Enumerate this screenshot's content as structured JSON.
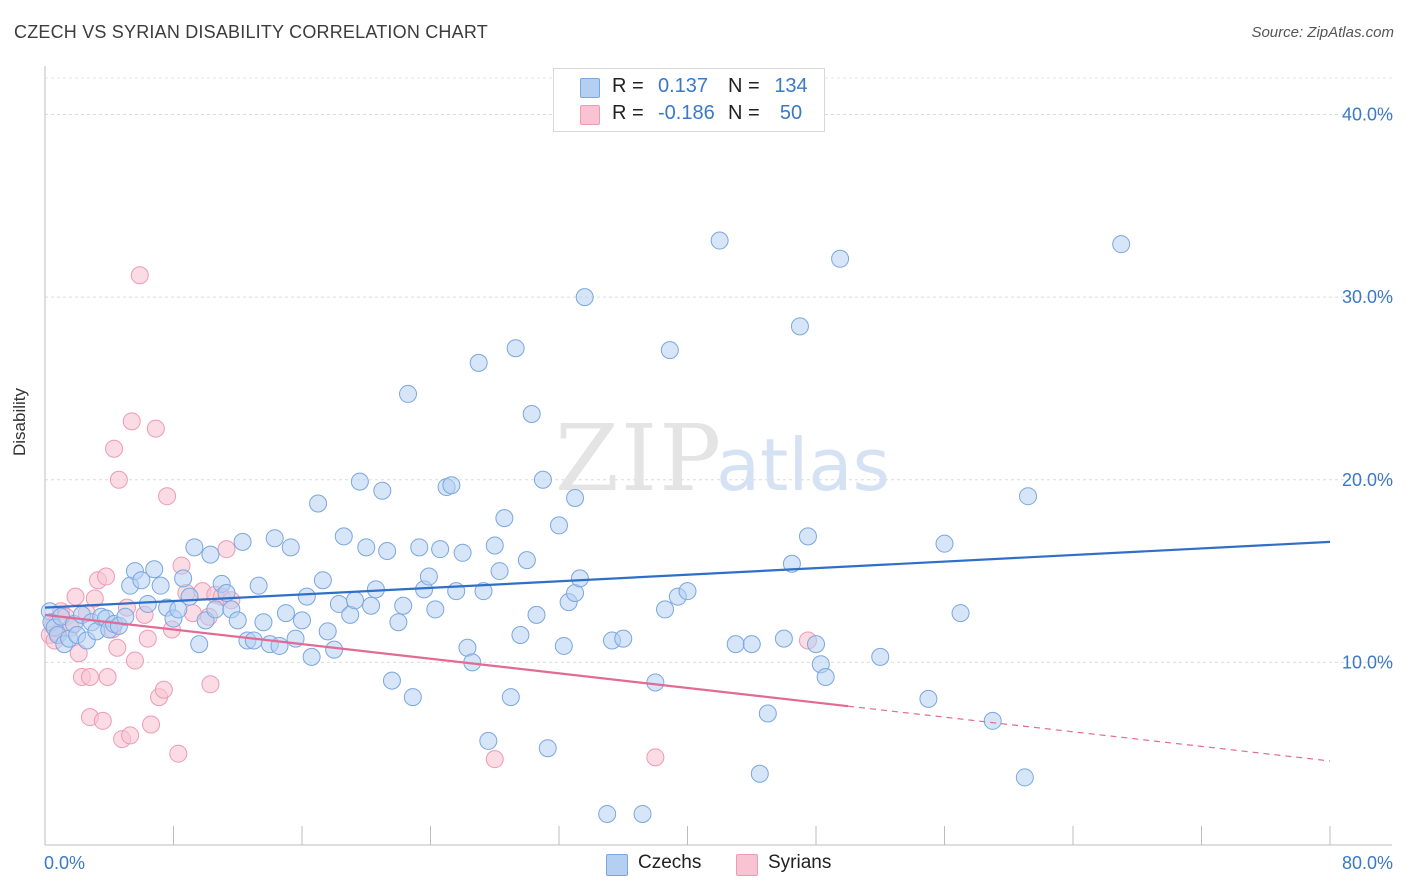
{
  "title": "CZECH VS SYRIAN DISABILITY CORRELATION CHART",
  "source": "Source: ZipAtlas.com",
  "watermark": {
    "zip": "ZIP",
    "atlas": "atlas"
  },
  "legend": {
    "r_label": "R =",
    "n_label": "N =",
    "czechs": {
      "r": "0.137",
      "n": "134"
    },
    "syrians": {
      "r": "-0.186",
      "n": "50"
    }
  },
  "colors": {
    "czech_fill": "#b5cff3",
    "czech_stroke": "#7aa7e0",
    "czech_line": "#2f6fc8",
    "syrian_fill": "#f8c4d4",
    "syrian_stroke": "#ee9ab5",
    "syrian_line": "#e26a95",
    "axis_text": "#3a78c8"
  },
  "chart_data": {
    "type": "scatter",
    "title": "CZECH VS SYRIAN DISABILITY CORRELATION CHART",
    "xlabel": "",
    "ylabel": "Disability",
    "xlim": [
      0,
      80
    ],
    "ylim": [
      0,
      42
    ],
    "x_tick_labels": [
      "0.0%",
      "80.0%"
    ],
    "y_ticks": [
      10,
      20,
      30,
      40
    ],
    "y_tick_labels": [
      "10.0%",
      "20.0%",
      "30.0%",
      "40.0%"
    ],
    "grid": true,
    "legend_position": "top-center",
    "series": [
      {
        "name": "Czechs",
        "r": 0.137,
        "n": 134,
        "trend": {
          "x": [
            0,
            80
          ],
          "y": [
            13.0,
            16.6
          ]
        },
        "points": [
          [
            0.3,
            12.8
          ],
          [
            0.4,
            12.2
          ],
          [
            0.6,
            11.9
          ],
          [
            0.8,
            11.5
          ],
          [
            1.0,
            12.5
          ],
          [
            1.2,
            11.0
          ],
          [
            1.5,
            11.3
          ],
          [
            1.8,
            12.1
          ],
          [
            2.0,
            11.5
          ],
          [
            2.3,
            12.6
          ],
          [
            2.6,
            11.2
          ],
          [
            2.9,
            12.2
          ],
          [
            3.2,
            11.7
          ],
          [
            3.5,
            12.5
          ],
          [
            3.8,
            12.4
          ],
          [
            4.0,
            11.8
          ],
          [
            4.3,
            12.1
          ],
          [
            4.6,
            12.0
          ],
          [
            5.0,
            12.5
          ],
          [
            5.3,
            14.2
          ],
          [
            5.6,
            15.0
          ],
          [
            6.0,
            14.5
          ],
          [
            6.4,
            13.2
          ],
          [
            6.8,
            15.1
          ],
          [
            7.2,
            14.2
          ],
          [
            7.6,
            13.0
          ],
          [
            8.0,
            12.4
          ],
          [
            8.3,
            12.9
          ],
          [
            8.6,
            14.6
          ],
          [
            9.0,
            13.6
          ],
          [
            9.3,
            16.3
          ],
          [
            9.6,
            11.0
          ],
          [
            10.0,
            12.3
          ],
          [
            10.3,
            15.9
          ],
          [
            10.6,
            12.9
          ],
          [
            11.0,
            14.3
          ],
          [
            11.3,
            13.8
          ],
          [
            11.6,
            12.9
          ],
          [
            12.0,
            12.3
          ],
          [
            12.3,
            16.6
          ],
          [
            12.6,
            11.2
          ],
          [
            13.0,
            11.2
          ],
          [
            13.3,
            14.2
          ],
          [
            13.6,
            12.2
          ],
          [
            14.0,
            11.0
          ],
          [
            14.3,
            16.8
          ],
          [
            14.6,
            10.9
          ],
          [
            15.0,
            12.7
          ],
          [
            15.3,
            16.3
          ],
          [
            15.6,
            11.3
          ],
          [
            16.0,
            12.3
          ],
          [
            16.3,
            13.6
          ],
          [
            16.6,
            10.3
          ],
          [
            17.0,
            18.7
          ],
          [
            17.3,
            14.5
          ],
          [
            17.6,
            11.7
          ],
          [
            18.0,
            10.7
          ],
          [
            18.3,
            13.2
          ],
          [
            18.6,
            16.9
          ],
          [
            19.0,
            12.6
          ],
          [
            19.3,
            13.4
          ],
          [
            19.6,
            19.9
          ],
          [
            20.0,
            16.3
          ],
          [
            20.3,
            13.1
          ],
          [
            20.6,
            14.0
          ],
          [
            21.0,
            19.4
          ],
          [
            21.3,
            16.1
          ],
          [
            21.6,
            9.0
          ],
          [
            22.0,
            12.2
          ],
          [
            22.3,
            13.1
          ],
          [
            22.6,
            24.7
          ],
          [
            22.9,
            8.1
          ],
          [
            23.3,
            16.3
          ],
          [
            23.6,
            14.0
          ],
          [
            23.9,
            14.7
          ],
          [
            24.3,
            12.9
          ],
          [
            24.6,
            16.2
          ],
          [
            25.0,
            19.6
          ],
          [
            25.3,
            19.7
          ],
          [
            25.6,
            13.9
          ],
          [
            26.0,
            16.0
          ],
          [
            26.3,
            10.8
          ],
          [
            26.6,
            10.0
          ],
          [
            27.0,
            26.4
          ],
          [
            27.3,
            13.9
          ],
          [
            27.6,
            5.7
          ],
          [
            28.0,
            16.4
          ],
          [
            28.3,
            15.0
          ],
          [
            28.6,
            17.9
          ],
          [
            29.0,
            8.1
          ],
          [
            29.3,
            27.2
          ],
          [
            29.6,
            11.5
          ],
          [
            30.0,
            15.6
          ],
          [
            30.3,
            23.6
          ],
          [
            30.6,
            12.6
          ],
          [
            31.0,
            20.0
          ],
          [
            31.3,
            5.3
          ],
          [
            32.0,
            17.5
          ],
          [
            32.3,
            10.9
          ],
          [
            32.6,
            13.3
          ],
          [
            33.0,
            13.8
          ],
          [
            33.3,
            14.6
          ],
          [
            33.6,
            30.0
          ],
          [
            35.0,
            1.7
          ],
          [
            35.3,
            11.2
          ],
          [
            36.0,
            11.3
          ],
          [
            37.2,
            1.7
          ],
          [
            38.0,
            8.9
          ],
          [
            38.6,
            12.9
          ],
          [
            38.9,
            27.1
          ],
          [
            39.4,
            13.6
          ],
          [
            40.0,
            13.9
          ],
          [
            42.0,
            33.1
          ],
          [
            43.0,
            11.0
          ],
          [
            44.0,
            11.0
          ],
          [
            44.5,
            3.9
          ],
          [
            45.0,
            7.2
          ],
          [
            46.0,
            11.3
          ],
          [
            46.5,
            15.4
          ],
          [
            47.0,
            28.4
          ],
          [
            47.5,
            16.9
          ],
          [
            48.0,
            11.0
          ],
          [
            48.3,
            9.9
          ],
          [
            48.6,
            9.2
          ],
          [
            49.5,
            32.1
          ],
          [
            52.0,
            10.3
          ],
          [
            55.0,
            8.0
          ],
          [
            56.0,
            16.5
          ],
          [
            57.0,
            12.7
          ],
          [
            59.0,
            6.8
          ],
          [
            61.0,
            3.7
          ],
          [
            61.2,
            19.1
          ],
          [
            67.0,
            32.9
          ],
          [
            33.0,
            19.0
          ]
        ]
      },
      {
        "name": "Syrians",
        "r": -0.186,
        "n": 50,
        "trend": {
          "x": [
            0,
            50
          ],
          "y": [
            12.6,
            7.6
          ]
        },
        "trend_dashed": {
          "x": [
            50,
            80
          ],
          "y": [
            7.6,
            4.6
          ]
        },
        "points": [
          [
            0.3,
            11.5
          ],
          [
            0.5,
            12.0
          ],
          [
            0.6,
            11.2
          ],
          [
            0.8,
            11.6
          ],
          [
            1.0,
            12.8
          ],
          [
            1.3,
            12.5
          ],
          [
            1.6,
            11.9
          ],
          [
            1.9,
            13.6
          ],
          [
            2.1,
            10.5
          ],
          [
            2.3,
            9.2
          ],
          [
            2.6,
            12.7
          ],
          [
            2.8,
            9.2
          ],
          [
            2.8,
            7.0
          ],
          [
            3.1,
            13.5
          ],
          [
            3.3,
            14.5
          ],
          [
            3.6,
            6.8
          ],
          [
            3.8,
            14.7
          ],
          [
            3.9,
            9.2
          ],
          [
            4.2,
            11.8
          ],
          [
            4.3,
            21.7
          ],
          [
            4.5,
            10.8
          ],
          [
            4.6,
            20.0
          ],
          [
            4.8,
            5.8
          ],
          [
            5.1,
            13.0
          ],
          [
            5.3,
            6.0
          ],
          [
            5.4,
            23.2
          ],
          [
            5.6,
            10.1
          ],
          [
            5.9,
            31.2
          ],
          [
            6.2,
            12.6
          ],
          [
            6.4,
            11.3
          ],
          [
            6.6,
            6.6
          ],
          [
            6.9,
            22.8
          ],
          [
            7.1,
            8.1
          ],
          [
            7.4,
            8.5
          ],
          [
            7.6,
            19.1
          ],
          [
            7.9,
            11.8
          ],
          [
            8.3,
            5.0
          ],
          [
            8.5,
            15.3
          ],
          [
            8.8,
            13.8
          ],
          [
            9.2,
            12.7
          ],
          [
            9.8,
            13.9
          ],
          [
            10.2,
            12.5
          ],
          [
            10.3,
            8.8
          ],
          [
            10.6,
            13.7
          ],
          [
            11.0,
            13.6
          ],
          [
            11.3,
            16.2
          ],
          [
            11.6,
            13.4
          ],
          [
            28.0,
            4.7
          ],
          [
            38.0,
            4.8
          ],
          [
            47.5,
            11.2
          ]
        ]
      }
    ]
  }
}
